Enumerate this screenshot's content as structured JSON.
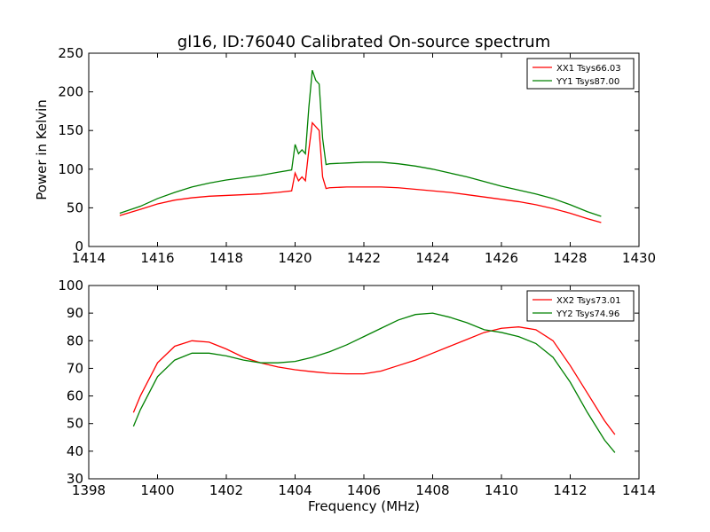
{
  "figure": {
    "title": "gl16, ID:76040 Calibrated On-source spectrum"
  },
  "chart_data": [
    {
      "type": "line",
      "title": "gl16, ID:76040 Calibrated On-source spectrum",
      "xlabel": "",
      "ylabel": "Power in Kelvin",
      "xlim": [
        1414,
        1430
      ],
      "ylim": [
        0,
        250
      ],
      "xticks": [
        "1414",
        "1416",
        "1418",
        "1420",
        "1422",
        "1424",
        "1426",
        "1428",
        "1430"
      ],
      "yticks": [
        "0",
        "50",
        "100",
        "150",
        "200",
        "250"
      ],
      "legend_position": "top-right",
      "grid": false,
      "series": [
        {
          "name": "XX1 Tsys66.03",
          "color": "#ff0000",
          "x": [
            1414.9,
            1415.5,
            1416.0,
            1416.5,
            1417.0,
            1417.5,
            1418.0,
            1418.5,
            1419.0,
            1419.5,
            1419.9,
            1420.0,
            1420.1,
            1420.2,
            1420.3,
            1420.4,
            1420.5,
            1420.6,
            1420.7,
            1420.8,
            1420.9,
            1421.0,
            1421.5,
            1422.0,
            1422.5,
            1423.0,
            1423.5,
            1424.0,
            1424.5,
            1425.0,
            1425.5,
            1426.0,
            1426.5,
            1427.0,
            1427.5,
            1428.0,
            1428.5,
            1428.9
          ],
          "y": [
            40,
            48,
            55,
            60,
            63,
            65,
            66,
            67,
            68,
            70,
            72,
            95,
            85,
            90,
            85,
            125,
            160,
            155,
            150,
            90,
            75,
            76,
            77,
            77,
            77,
            76,
            74,
            72,
            70,
            67,
            64,
            61,
            58,
            54,
            49,
            43,
            36,
            31
          ]
        },
        {
          "name": "YY1 Tsys87.00",
          "color": "#008000",
          "x": [
            1414.9,
            1415.5,
            1416.0,
            1416.5,
            1417.0,
            1417.5,
            1418.0,
            1418.5,
            1419.0,
            1419.5,
            1419.9,
            1420.0,
            1420.1,
            1420.2,
            1420.3,
            1420.4,
            1420.5,
            1420.6,
            1420.7,
            1420.8,
            1420.9,
            1421.0,
            1421.5,
            1422.0,
            1422.5,
            1423.0,
            1423.5,
            1424.0,
            1424.5,
            1425.0,
            1425.5,
            1426.0,
            1426.5,
            1427.0,
            1427.5,
            1428.0,
            1428.5,
            1428.9
          ],
          "y": [
            43,
            52,
            62,
            70,
            77,
            82,
            86,
            89,
            92,
            96,
            99,
            132,
            120,
            125,
            120,
            180,
            228,
            215,
            210,
            140,
            106,
            107,
            108,
            109,
            109,
            107,
            104,
            100,
            95,
            90,
            84,
            78,
            73,
            68,
            62,
            54,
            45,
            39
          ]
        }
      ]
    },
    {
      "type": "line",
      "title": "",
      "xlabel": "Frequency (MHz)",
      "ylabel": "",
      "xlim": [
        1398,
        1414
      ],
      "ylim": [
        30,
        100
      ],
      "xticks": [
        "1398",
        "1400",
        "1402",
        "1404",
        "1406",
        "1408",
        "1410",
        "1412",
        "1414"
      ],
      "yticks": [
        "30",
        "40",
        "50",
        "60",
        "70",
        "80",
        "90",
        "100"
      ],
      "legend_position": "top-right",
      "grid": false,
      "series": [
        {
          "name": "XX2 Tsys73.01",
          "color": "#ff0000",
          "x": [
            1399.3,
            1399.5,
            1400.0,
            1400.5,
            1401.0,
            1401.5,
            1402.0,
            1402.5,
            1403.0,
            1403.5,
            1404.0,
            1404.5,
            1405.0,
            1405.5,
            1406.0,
            1406.5,
            1407.0,
            1407.5,
            1408.0,
            1408.5,
            1409.0,
            1409.5,
            1410.0,
            1410.5,
            1411.0,
            1411.5,
            1412.0,
            1412.5,
            1413.0,
            1413.3
          ],
          "y": [
            54,
            60,
            72,
            78,
            80,
            79.5,
            77,
            74,
            72,
            70.5,
            69.5,
            68.8,
            68.2,
            68,
            68,
            69,
            71,
            73,
            75.5,
            78,
            80.5,
            83,
            84.5,
            85,
            84,
            80,
            71,
            61,
            51,
            46
          ]
        },
        {
          "name": "YY2 Tsys74.96",
          "color": "#008000",
          "x": [
            1399.3,
            1399.5,
            1400.0,
            1400.5,
            1401.0,
            1401.5,
            1402.0,
            1402.5,
            1403.0,
            1403.5,
            1404.0,
            1404.5,
            1405.0,
            1405.5,
            1406.0,
            1406.5,
            1407.0,
            1407.5,
            1408.0,
            1408.5,
            1409.0,
            1409.5,
            1410.0,
            1410.5,
            1411.0,
            1411.5,
            1412.0,
            1412.5,
            1413.0,
            1413.3
          ],
          "y": [
            49,
            55,
            67,
            73,
            75.5,
            75.5,
            74.5,
            73,
            72,
            72,
            72.5,
            74,
            76,
            78.5,
            81.5,
            84.5,
            87.5,
            89.5,
            90,
            88.5,
            86.5,
            84,
            83,
            81.5,
            79,
            74,
            65,
            54,
            44,
            39.5
          ]
        }
      ]
    }
  ]
}
